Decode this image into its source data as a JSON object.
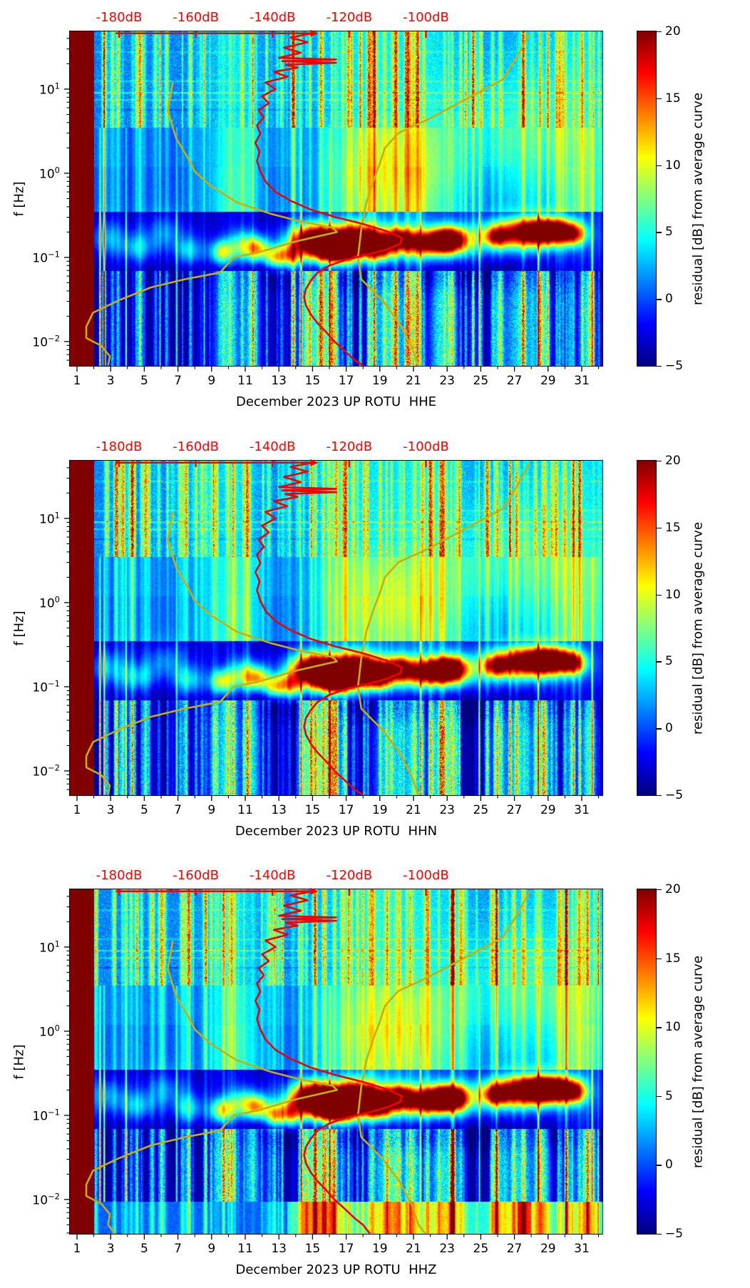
{
  "page": {
    "background": "#ffffff"
  },
  "chart_data": {
    "type": "heatmap",
    "subtype": "spectrogram-grid",
    "colormap": "jet",
    "shared": {
      "ylabel": "f [Hz]",
      "y_scale": "log",
      "y_range_hz": [
        0.005,
        48.5
      ],
      "y_major_ticks": [
        {
          "f": 10,
          "base": "10",
          "exp": "1"
        },
        {
          "f": 1,
          "base": "10",
          "exp": "0"
        },
        {
          "f": 0.1,
          "base": "10",
          "exp": "−1"
        },
        {
          "f": 0.01,
          "base": "10",
          "exp": "−2"
        }
      ],
      "x_range_days": [
        0.576,
        32.23
      ],
      "x_major_ticks": [
        1,
        3,
        5,
        7,
        9,
        11,
        13,
        15,
        17,
        19,
        21,
        23,
        25,
        27,
        29,
        31
      ],
      "x_minor_ticks": [
        2,
        4,
        6,
        8,
        10,
        12,
        14,
        16,
        18,
        20,
        22,
        24,
        26,
        28,
        30,
        32
      ],
      "top_axis": {
        "color": "#ff0000",
        "labels": [
          "-180dB",
          "-160dB",
          "-140dB",
          "-120dB",
          "-100dB"
        ],
        "label_days": [
          3.5,
          8.06,
          12.62,
          17.18,
          21.74
        ]
      },
      "colorbar": {
        "label": "residual [dB] from average curve",
        "tick_values": [
          20,
          15,
          10,
          5,
          0,
          -5
        ],
        "tick_labels": [
          "20",
          "15",
          "10",
          "5",
          "0",
          "−5"
        ],
        "range": [
          -5,
          20
        ]
      },
      "curves": {
        "red": {
          "color": "#f20000",
          "points": [
            [
              3.3,
              46
            ],
            [
              15.0,
              46
            ],
            [
              13.7,
              41
            ],
            [
              14.7,
              36
            ],
            [
              13.3,
              31
            ],
            [
              14.3,
              27
            ],
            [
              13.0,
              23.5
            ],
            [
              16.4,
              22.5
            ],
            [
              13.2,
              21.5
            ],
            [
              16.4,
              20.5
            ],
            [
              13.4,
              19.5
            ],
            [
              14.1,
              18
            ],
            [
              12.7,
              16
            ],
            [
              13.5,
              14
            ],
            [
              12.2,
              12
            ],
            [
              12.8,
              10
            ],
            [
              12.0,
              8.2
            ],
            [
              12.4,
              6.8
            ],
            [
              11.8,
              5.6
            ],
            [
              12.1,
              4.6
            ],
            [
              11.7,
              3.7
            ],
            [
              11.9,
              2.95
            ],
            [
              11.6,
              2.3
            ],
            [
              11.85,
              1.8
            ],
            [
              11.7,
              1.4
            ],
            [
              11.9,
              1.05
            ],
            [
              12.2,
              0.8
            ],
            [
              12.8,
              0.6
            ],
            [
              13.7,
              0.47
            ],
            [
              14.9,
              0.37
            ],
            [
              16.4,
              0.3
            ],
            [
              18.0,
              0.25
            ],
            [
              19.4,
              0.205
            ],
            [
              20.3,
              0.17
            ],
            [
              20.2,
              0.145
            ],
            [
              19.4,
              0.124
            ],
            [
              18.2,
              0.107
            ],
            [
              17.0,
              0.094
            ],
            [
              16.0,
              0.08
            ],
            [
              15.3,
              0.066
            ],
            [
              14.9,
              0.053
            ],
            [
              14.6,
              0.042
            ],
            [
              14.5,
              0.034
            ],
            [
              14.6,
              0.027
            ],
            [
              14.9,
              0.021
            ],
            [
              15.3,
              0.0165
            ],
            [
              15.8,
              0.013
            ],
            [
              16.3,
              0.01
            ],
            [
              16.9,
              0.0078
            ],
            [
              17.5,
              0.006
            ],
            [
              18.0,
              0.005
            ]
          ]
        },
        "yellow_right": {
          "color": "#c9ae08",
          "points": [
            [
              27.9,
              46
            ],
            [
              27.2,
              25
            ],
            [
              26.3,
              13
            ],
            [
              23.9,
              7.2
            ],
            [
              21.9,
              4.4
            ],
            [
              20.1,
              3.0
            ],
            [
              19.3,
              2.0
            ],
            [
              19.0,
              1.3
            ],
            [
              18.6,
              0.8
            ],
            [
              18.2,
              0.45
            ],
            [
              17.9,
              0.22
            ],
            [
              17.7,
              0.1
            ],
            [
              17.9,
              0.055
            ],
            [
              19.2,
              0.03
            ],
            [
              20.2,
              0.016
            ],
            [
              20.9,
              0.0085
            ],
            [
              21.3,
              0.005
            ]
          ]
        },
        "yellow_left": {
          "color": "#c9ae08",
          "points": [
            [
              6.7,
              12
            ],
            [
              6.4,
              5.5
            ],
            [
              6.9,
              2.6
            ],
            [
              7.6,
              1.5
            ],
            [
              8.0,
              1.05
            ],
            [
              8.9,
              0.72
            ],
            [
              10.5,
              0.45
            ],
            [
              12.5,
              0.33
            ],
            [
              14.2,
              0.27
            ],
            [
              16.2,
              0.225
            ],
            [
              16.45,
              0.2
            ],
            [
              14.0,
              0.155
            ],
            [
              11.8,
              0.115
            ],
            [
              10.3,
              0.1
            ],
            [
              9.5,
              0.066
            ],
            [
              7.4,
              0.055
            ],
            [
              5.4,
              0.044
            ],
            [
              3.5,
              0.031
            ],
            [
              1.95,
              0.022
            ],
            [
              1.55,
              0.015
            ],
            [
              1.55,
              0.011
            ],
            [
              2.45,
              0.0089
            ],
            [
              2.95,
              0.0067
            ],
            [
              2.85,
              0.005
            ]
          ]
        }
      },
      "heatmap_features": {
        "missing_data_band_days": [
          0.576,
          2.02
        ],
        "missing_data_value": 26,
        "warm_blobs": [
          [
            15.1,
            0.16,
            0.9,
            0.13,
            26
          ],
          [
            16.4,
            0.125,
            0.8,
            0.11,
            27
          ],
          [
            17.6,
            0.165,
            0.9,
            0.13,
            22
          ],
          [
            18.9,
            0.135,
            0.55,
            0.1,
            19
          ],
          [
            20.1,
            0.17,
            0.5,
            0.09,
            14
          ],
          [
            21.8,
            0.15,
            1.2,
            0.1,
            16
          ],
          [
            23.1,
            0.165,
            0.7,
            0.1,
            21
          ],
          [
            25.9,
            0.175,
            0.5,
            0.08,
            12
          ],
          [
            27.7,
            0.2,
            1.5,
            0.12,
            22
          ],
          [
            29.2,
            0.21,
            0.9,
            0.1,
            19
          ],
          [
            30.5,
            0.19,
            0.5,
            0.09,
            13
          ],
          [
            20.0,
            0.15,
            5.0,
            0.16,
            7
          ]
        ],
        "cool_blobs": [
          [
            2.8,
            0.17,
            0.8,
            0.15,
            6
          ],
          [
            4.6,
            0.13,
            0.7,
            0.12,
            6
          ],
          [
            6.2,
            0.2,
            0.9,
            0.15,
            5
          ],
          [
            7.6,
            0.12,
            0.6,
            0.12,
            7
          ],
          [
            9.6,
            0.115,
            0.5,
            0.1,
            12
          ],
          [
            10.8,
            0.14,
            0.6,
            0.12,
            8
          ],
          [
            11.7,
            0.125,
            0.5,
            0.1,
            13
          ],
          [
            12.7,
            0.1,
            0.4,
            0.09,
            11
          ],
          [
            13.6,
            0.105,
            0.5,
            0.1,
            14
          ],
          [
            27.5,
            3.5,
            3.5,
            0.5,
            3.5
          ],
          [
            19.5,
            1.2,
            2.5,
            0.4,
            3
          ],
          [
            22.0,
            0.065,
            8.0,
            0.15,
            -3
          ]
        ],
        "broad_columns": [
          [
            9.7,
            2.0,
            3
          ],
          [
            10.8,
            1.5,
            3
          ],
          [
            16.5,
            2.5,
            3
          ],
          [
            18.3,
            2.0,
            3
          ],
          [
            19.8,
            2.2,
            3
          ],
          [
            21.3,
            1.8,
            3
          ],
          [
            22.8,
            2.4,
            3
          ],
          [
            27.5,
            1.5,
            2.5
          ],
          [
            30.0,
            1.8,
            3
          ],
          [
            31.5,
            2.2,
            3.5
          ]
        ],
        "bottom_columns": [
          [
            9.9,
            1.1,
            9
          ],
          [
            11.4,
            0.7,
            8
          ],
          [
            14.6,
            0.5,
            9
          ],
          [
            15.4,
            0.8,
            11
          ],
          [
            16.2,
            0.5,
            12
          ],
          [
            19.6,
            1.3,
            9
          ],
          [
            21.0,
            0.7,
            8
          ],
          [
            22.6,
            0.9,
            9
          ],
          [
            23.3,
            0.4,
            8
          ],
          [
            26.0,
            0.5,
            7
          ],
          [
            27.3,
            1.4,
            8
          ],
          [
            28.7,
            0.6,
            9
          ],
          [
            30.3,
            0.4,
            7
          ],
          [
            31.4,
            0.6,
            10
          ]
        ],
        "tall_streaks": [
          [
            2.35,
            17
          ],
          [
            2.6,
            14
          ],
          [
            3.9,
            12
          ],
          [
            6.9,
            11
          ],
          [
            14.3,
            13
          ],
          [
            16.0,
            12
          ],
          [
            21.4,
            11
          ],
          [
            24.9,
            10
          ],
          [
            28.4,
            15
          ],
          [
            31.6,
            12
          ]
        ],
        "h_lines": [
          [
            9.3,
            3.5
          ],
          [
            7.6,
            2.5
          ],
          [
            12.5,
            2.0
          ],
          [
            28,
            1.5
          ],
          [
            5.8,
            -1.5
          ]
        ],
        "thin_streak_count": 150
      }
    },
    "figures": [
      {
        "channel": "HHE",
        "xlabel": "December 2023 UP ROTU  HHE",
        "seed": 11,
        "has_bottom_band": false,
        "warm_scale": 1.0
      },
      {
        "channel": "HHN",
        "xlabel": "December 2023 UP ROTU  HHN",
        "seed": 23,
        "has_bottom_band": false,
        "warm_scale": 1.05
      },
      {
        "channel": "HHZ",
        "xlabel": "December 2023 UP ROTU  HHZ",
        "seed": 37,
        "has_bottom_band": true,
        "warm_scale": 1.15
      }
    ]
  }
}
